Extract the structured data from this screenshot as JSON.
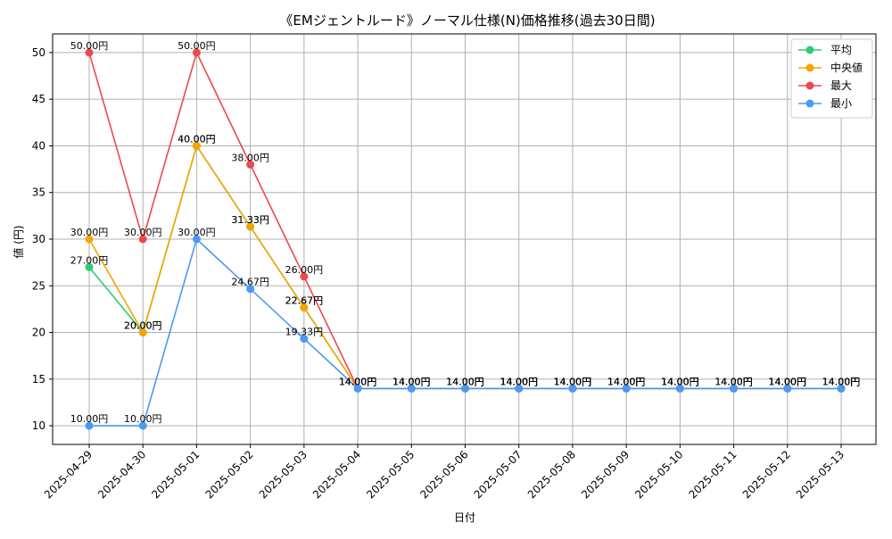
{
  "chart_data": {
    "type": "line",
    "title": "《EMジェントルード》ノーマル仕様(N)価格推移(過去30日間)",
    "xlabel": "日付",
    "ylabel": "値 (円)",
    "ylim": [
      8,
      52
    ],
    "yticks": [
      10,
      15,
      20,
      25,
      30,
      35,
      40,
      45,
      50
    ],
    "grid": true,
    "legend_position": "top-right",
    "label_suffix": "円",
    "categories": [
      "2025-04-29",
      "2025-04-30",
      "2025-05-01",
      "2025-05-02",
      "2025-05-03",
      "2025-05-04",
      "2025-05-05",
      "2025-05-06",
      "2025-05-07",
      "2025-05-08",
      "2025-05-09",
      "2025-05-10",
      "2025-05-11",
      "2025-05-12",
      "2025-05-13"
    ],
    "series": [
      {
        "name": "平均",
        "key": "avg",
        "color": "#2ecc71",
        "values": [
          27.0,
          20.0,
          40.0,
          31.33,
          22.67,
          14.0,
          14.0,
          14.0,
          14.0,
          14.0,
          14.0,
          14.0,
          14.0,
          14.0,
          14.0
        ],
        "labels": [
          "27.00円",
          "20.00円",
          "40.00円",
          "31.33円",
          "22.67円",
          "14.00円",
          "14.00円",
          "14.00円",
          "14.00円",
          "14.00円",
          "14.00円",
          "14.00円",
          "14.00円",
          "14.00円",
          "14.00円"
        ]
      },
      {
        "name": "中央値",
        "key": "median",
        "color": "#f5a500",
        "values": [
          30.0,
          20.0,
          40.0,
          31.33,
          22.67,
          14.0,
          14.0,
          14.0,
          14.0,
          14.0,
          14.0,
          14.0,
          14.0,
          14.0,
          14.0
        ],
        "labels": [
          "30.00円",
          "20.00円",
          "40.00円",
          "31.33円",
          "22.67円",
          "14.00円",
          "14.00円",
          "14.00円",
          "14.00円",
          "14.00円",
          "14.00円",
          "14.00円",
          "14.00円",
          "14.00円",
          "14.00円"
        ]
      },
      {
        "name": "最大",
        "key": "max",
        "color": "#f04848",
        "values": [
          50.0,
          30.0,
          50.0,
          38.0,
          26.0,
          14.0,
          14.0,
          14.0,
          14.0,
          14.0,
          14.0,
          14.0,
          14.0,
          14.0,
          14.0
        ],
        "labels": [
          "50.00円",
          "30.00円",
          "50.00円",
          "38.00円",
          "26.00円",
          "14.00円",
          "14.00円",
          "14.00円",
          "14.00円",
          "14.00円",
          "14.00円",
          "14.00円",
          "14.00円",
          "14.00円",
          "14.00円"
        ]
      },
      {
        "name": "最小",
        "key": "min",
        "color": "#4a9af5",
        "values": [
          10.0,
          10.0,
          30.0,
          24.67,
          19.33,
          14.0,
          14.0,
          14.0,
          14.0,
          14.0,
          14.0,
          14.0,
          14.0,
          14.0,
          14.0
        ],
        "labels": [
          "10.00円",
          "10.00円",
          "30.00円",
          "24.67円",
          "19.33円",
          "14.00円",
          "14.00円",
          "14.00円",
          "14.00円",
          "14.00円",
          "14.00円",
          "14.00円",
          "14.00円",
          "14.00円",
          "14.00円"
        ]
      }
    ]
  }
}
